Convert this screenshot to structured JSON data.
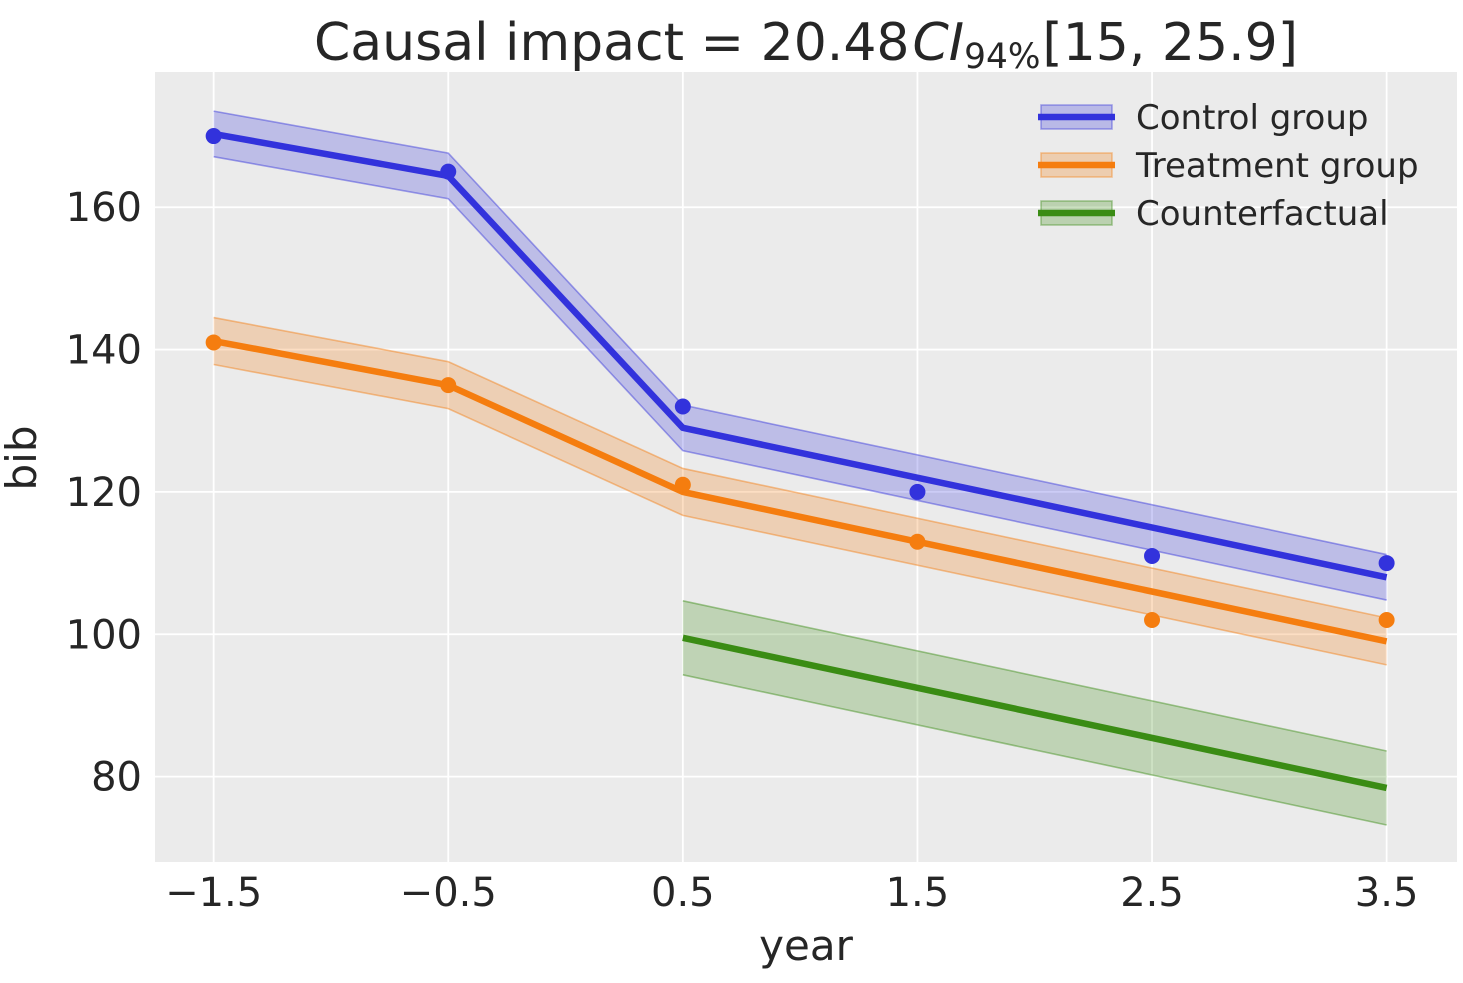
{
  "title": {
    "prefix": "Causal impact = 20.48",
    "ci_italic": "CI",
    "ci_sub": "94%",
    "interval": "[15, 25.9]"
  },
  "chart_data": {
    "type": "line",
    "title": "Causal impact = 20.48 CI_94% [15, 25.9]",
    "xlabel": "year",
    "ylabel": "bib",
    "xlim": [
      -1.75,
      3.8
    ],
    "ylim": [
      68,
      179
    ],
    "x_ticks": [
      -1.5,
      -0.5,
      0.5,
      1.5,
      2.5,
      3.5
    ],
    "x_tick_labels": [
      "−1.5",
      "−0.5",
      "0.5",
      "1.5",
      "2.5",
      "3.5"
    ],
    "y_ticks": [
      80,
      100,
      120,
      140,
      160
    ],
    "y_tick_labels": [
      "80",
      "100",
      "120",
      "140",
      "160"
    ],
    "grid": true,
    "plot_background": "#ebebeb",
    "gridline_color": "#ffffff",
    "text_color": "#262626",
    "legend_position": "upper right",
    "marker_radius": 8,
    "line_width": 6.5,
    "series": [
      {
        "name": "Control group",
        "color": "#3232dc",
        "band_alpha": 0.25,
        "band_halfwidth": 3.2,
        "line": {
          "x": [
            -1.5,
            -0.5,
            0.5,
            3.5
          ],
          "y": [
            170.3,
            164.4,
            129.0,
            108.0
          ]
        },
        "points": {
          "x": [
            -1.5,
            -0.5,
            0.5,
            1.5,
            2.5,
            3.5
          ],
          "y": [
            170,
            165,
            132,
            120,
            111,
            110
          ]
        }
      },
      {
        "name": "Treatment group",
        "color": "#f57d0f",
        "band_alpha": 0.25,
        "band_halfwidth": 3.3,
        "line": {
          "x": [
            -1.5,
            -0.5,
            0.5,
            3.5
          ],
          "y": [
            141.2,
            135.0,
            120.0,
            99.0
          ]
        },
        "points": {
          "x": [
            -1.5,
            -0.5,
            0.5,
            1.5,
            2.5,
            3.5
          ],
          "y": [
            141,
            135,
            121,
            113,
            102,
            102
          ]
        }
      },
      {
        "name": "Counterfactual",
        "color": "#3a8c14",
        "band_alpha": 0.25,
        "band_halfwidth": 5.2,
        "line": {
          "x": [
            0.5,
            3.5
          ],
          "y": [
            99.5,
            78.4
          ]
        },
        "points": null
      }
    ]
  }
}
